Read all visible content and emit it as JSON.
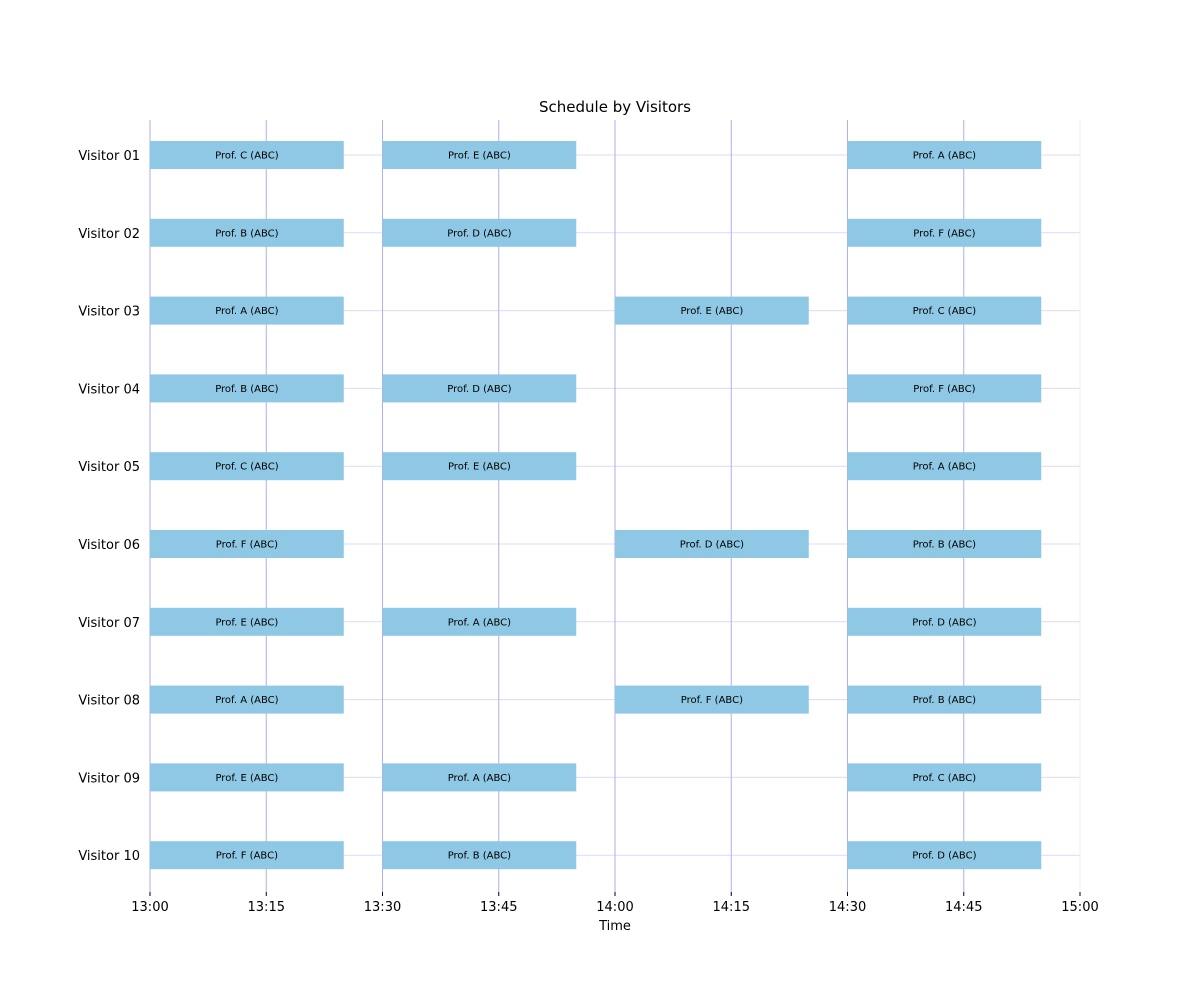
{
  "chart_data": {
    "type": "bar",
    "orientation": "horizontal-gantt",
    "title": "Schedule by Visitors",
    "xlabel": "Time",
    "ylabel": "",
    "x_ticks": [
      "13:00",
      "13:15",
      "13:30",
      "13:45",
      "14:00",
      "14:15",
      "14:30",
      "14:45",
      "15:00"
    ],
    "xlim": [
      "13:00",
      "15:00"
    ],
    "grid": true,
    "colors": {
      "bar": "#8ec8e4",
      "grid": "#b0aeee",
      "hgrid": "#dcdcf2"
    },
    "visitors": [
      "Visitor 01",
      "Visitor 02",
      "Visitor 03",
      "Visitor 04",
      "Visitor 05",
      "Visitor 06",
      "Visitor 07",
      "Visitor 08",
      "Visitor 09",
      "Visitor 10"
    ],
    "meetings": [
      {
        "visitor": "Visitor 01",
        "start": "13:00",
        "end": "13:25",
        "label": "Prof. C (ABC)"
      },
      {
        "visitor": "Visitor 01",
        "start": "13:30",
        "end": "13:55",
        "label": "Prof. E (ABC)"
      },
      {
        "visitor": "Visitor 01",
        "start": "14:30",
        "end": "14:55",
        "label": "Prof. A (ABC)"
      },
      {
        "visitor": "Visitor 02",
        "start": "13:00",
        "end": "13:25",
        "label": "Prof. B (ABC)"
      },
      {
        "visitor": "Visitor 02",
        "start": "13:30",
        "end": "13:55",
        "label": "Prof. D (ABC)"
      },
      {
        "visitor": "Visitor 02",
        "start": "14:30",
        "end": "14:55",
        "label": "Prof. F (ABC)"
      },
      {
        "visitor": "Visitor 03",
        "start": "13:00",
        "end": "13:25",
        "label": "Prof. A (ABC)"
      },
      {
        "visitor": "Visitor 03",
        "start": "14:00",
        "end": "14:25",
        "label": "Prof. E (ABC)"
      },
      {
        "visitor": "Visitor 03",
        "start": "14:30",
        "end": "14:55",
        "label": "Prof. C (ABC)"
      },
      {
        "visitor": "Visitor 04",
        "start": "13:00",
        "end": "13:25",
        "label": "Prof. B (ABC)"
      },
      {
        "visitor": "Visitor 04",
        "start": "13:30",
        "end": "13:55",
        "label": "Prof. D (ABC)"
      },
      {
        "visitor": "Visitor 04",
        "start": "14:30",
        "end": "14:55",
        "label": "Prof. F (ABC)"
      },
      {
        "visitor": "Visitor 05",
        "start": "13:00",
        "end": "13:25",
        "label": "Prof. C (ABC)"
      },
      {
        "visitor": "Visitor 05",
        "start": "13:30",
        "end": "13:55",
        "label": "Prof. E (ABC)"
      },
      {
        "visitor": "Visitor 05",
        "start": "14:30",
        "end": "14:55",
        "label": "Prof. A (ABC)"
      },
      {
        "visitor": "Visitor 06",
        "start": "13:00",
        "end": "13:25",
        "label": "Prof. F (ABC)"
      },
      {
        "visitor": "Visitor 06",
        "start": "14:00",
        "end": "14:25",
        "label": "Prof. D (ABC)"
      },
      {
        "visitor": "Visitor 06",
        "start": "14:30",
        "end": "14:55",
        "label": "Prof. B (ABC)"
      },
      {
        "visitor": "Visitor 07",
        "start": "13:00",
        "end": "13:25",
        "label": "Prof. E (ABC)"
      },
      {
        "visitor": "Visitor 07",
        "start": "13:30",
        "end": "13:55",
        "label": "Prof. A (ABC)"
      },
      {
        "visitor": "Visitor 07",
        "start": "14:30",
        "end": "14:55",
        "label": "Prof. D (ABC)"
      },
      {
        "visitor": "Visitor 08",
        "start": "13:00",
        "end": "13:25",
        "label": "Prof. A (ABC)"
      },
      {
        "visitor": "Visitor 08",
        "start": "14:00",
        "end": "14:25",
        "label": "Prof. F (ABC)"
      },
      {
        "visitor": "Visitor 08",
        "start": "14:30",
        "end": "14:55",
        "label": "Prof. B (ABC)"
      },
      {
        "visitor": "Visitor 09",
        "start": "13:00",
        "end": "13:25",
        "label": "Prof. E (ABC)"
      },
      {
        "visitor": "Visitor 09",
        "start": "13:30",
        "end": "13:55",
        "label": "Prof. A (ABC)"
      },
      {
        "visitor": "Visitor 09",
        "start": "14:30",
        "end": "14:55",
        "label": "Prof. C (ABC)"
      },
      {
        "visitor": "Visitor 10",
        "start": "13:00",
        "end": "13:25",
        "label": "Prof. F (ABC)"
      },
      {
        "visitor": "Visitor 10",
        "start": "13:30",
        "end": "13:55",
        "label": "Prof. B (ABC)"
      },
      {
        "visitor": "Visitor 10",
        "start": "14:30",
        "end": "14:55",
        "label": "Prof. D (ABC)"
      }
    ]
  }
}
